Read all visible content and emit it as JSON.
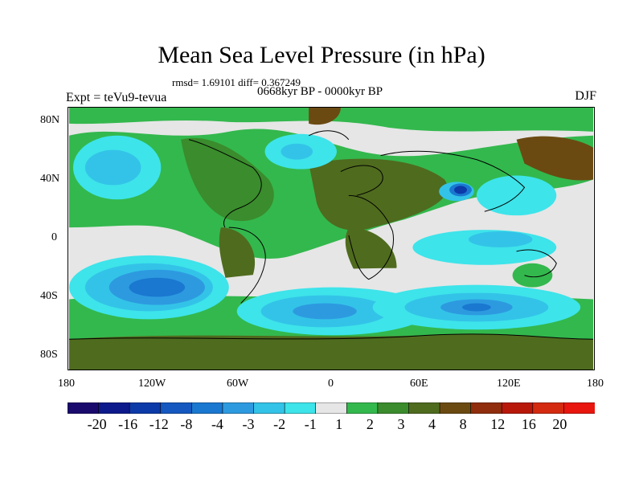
{
  "title": "Mean Sea Level Pressure (in hPa)",
  "stats": "rmsd= 1.69101 diff= 0.367249",
  "period": "0668kyr BP - 0000kyr BP",
  "experiment": "Expt = teVu9-tevua",
  "season": "DJF",
  "axes": {
    "y_labels": [
      "80N",
      "40N",
      "0",
      "40S",
      "80S"
    ],
    "x_labels": [
      "180",
      "120W",
      "60W",
      "0",
      "60E",
      "120E",
      "180"
    ]
  },
  "colorbar": {
    "labels": [
      "-20",
      "-16",
      "-12",
      "-8",
      "-4",
      "-3",
      "-2",
      "-1",
      "1",
      "2",
      "3",
      "4",
      "8",
      "12",
      "16",
      "20"
    ],
    "colors": [
      "#1a0a6e",
      "#0d1a8c",
      "#0c3aa8",
      "#1558c0",
      "#1a78d0",
      "#2d9ae0",
      "#33c3e8",
      "#3de4ea",
      "#e6e6e6",
      "#33b84d",
      "#3a8c2c",
      "#4f6b1e",
      "#6b4a12",
      "#8f2d0c",
      "#b8180a",
      "#d42a10",
      "#e8160e"
    ]
  },
  "chart_data": {
    "type": "heatmap",
    "title": "Mean Sea Level Pressure (in hPa)",
    "subtitle": "0668kyr BP - 0000kyr BP",
    "xlim": [
      -180,
      180
    ],
    "ylim": [
      -90,
      90
    ],
    "units": "hPa",
    "levels": [
      -20,
      -16,
      -12,
      -8,
      -4,
      -3,
      -2,
      -1,
      1,
      2,
      3,
      4,
      8,
      12,
      16,
      20
    ],
    "summary": {
      "rmsd": 1.69101,
      "diff": 0.367249
    }
  }
}
